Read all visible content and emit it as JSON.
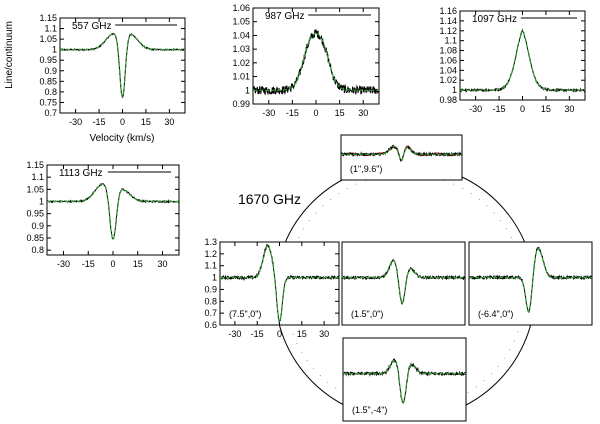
{
  "figure": {
    "ylabel": "Line/continuum",
    "xlabel": "Velocity (km/s)",
    "section_label": "1670 GHz"
  },
  "colors": {
    "observed": "#000000",
    "model": "#2ca02c",
    "alt_model": "#d62728"
  },
  "chart_data": [
    {
      "type": "line",
      "title": "557 GHz",
      "xlim": [
        -40,
        40
      ],
      "ylim": [
        0.7,
        1.15
      ],
      "xticks": [
        -30,
        -15,
        0,
        15,
        30
      ],
      "yticks": [
        0.7,
        0.75,
        0.8,
        0.85,
        0.9,
        0.95,
        1,
        1.05,
        1.1,
        1.15
      ],
      "xticklabels": [
        "-30",
        "-15",
        "0",
        "15",
        "30"
      ],
      "yticklabels": [
        "0.7",
        "0.75",
        "0.8",
        "0.85",
        "0.9",
        "0.95",
        "1",
        "1.05",
        "1.1",
        "1.15"
      ],
      "legend": "top-right",
      "noise": 0.003,
      "profile": {
        "base": 1.0,
        "comps": [
          [
            -6,
            5,
            0.07
          ],
          [
            5,
            5,
            0.07
          ],
          [
            0,
            1.8,
            -0.3
          ]
        ]
      }
    },
    {
      "type": "line",
      "title": "987 GHz",
      "xlim": [
        -40,
        40
      ],
      "ylim": [
        0.99,
        1.06
      ],
      "xticks": [
        -30,
        -15,
        0,
        15,
        30
      ],
      "yticks": [
        0.99,
        1,
        1.01,
        1.02,
        1.03,
        1.04,
        1.05,
        1.06
      ],
      "xticklabels": [
        "-30",
        "-15",
        "0",
        "15",
        "30"
      ],
      "yticklabels": [
        "0.99",
        "1",
        "1.01",
        "1.02",
        "1.03",
        "1.04",
        "1.05",
        "1.06"
      ],
      "legend": "top-right",
      "noise": 0.003,
      "flat": 8,
      "profile": {
        "base": 1.0,
        "comps": [
          [
            0,
            7,
            0.042
          ]
        ]
      }
    },
    {
      "type": "line",
      "title": "1097 GHz",
      "xlim": [
        -40,
        40
      ],
      "ylim": [
        0.98,
        1.16
      ],
      "xticks": [
        -30,
        -15,
        0,
        15,
        30
      ],
      "yticks": [
        0.98,
        1,
        1.02,
        1.04,
        1.06,
        1.08,
        1.1,
        1.12,
        1.14,
        1.16
      ],
      "xticklabels": [
        "-30",
        "-15",
        "0",
        "15",
        "30"
      ],
      "yticklabels": [
        "0.98",
        "1",
        "1.02",
        "1.04",
        "1.06",
        "1.08",
        "1.1",
        "1.12",
        "1.14",
        "1.16"
      ],
      "legend": "top-right",
      "noise": 0.002,
      "flat": 4,
      "profile": {
        "base": 1.0,
        "comps": [
          [
            0,
            7,
            0.122
          ]
        ]
      }
    },
    {
      "type": "line",
      "title": "1113 GHz",
      "xlim": [
        -40,
        40
      ],
      "ylim": [
        0.78,
        1.15
      ],
      "xticks": [
        -30,
        -15,
        0,
        15,
        30
      ],
      "yticks": [
        0.8,
        0.85,
        0.9,
        0.95,
        1,
        1.05,
        1.1,
        1.15
      ],
      "xticklabels": [
        "-30",
        "-15",
        "0",
        "15",
        "30"
      ],
      "yticklabels": [
        "0.8",
        "0.85",
        "0.9",
        "0.95",
        "1",
        "1.05",
        "1.1",
        "1.15"
      ],
      "legend": "top-right",
      "noise": 0.003,
      "profile": {
        "base": 1.0,
        "comps": [
          [
            -6,
            5,
            0.07
          ],
          [
            5,
            5,
            0.05
          ],
          [
            0,
            2,
            -0.22
          ]
        ]
      }
    },
    {
      "type": "line",
      "title": "",
      "offset_label": "(1\",9.6\")",
      "xlim": [
        -40,
        40
      ],
      "ylim": [
        0.6,
        1.3
      ],
      "xticks": [],
      "yticks": [],
      "noise": 0.02,
      "alt": true,
      "profile": {
        "base": 1.0,
        "comps": [
          [
            -5,
            3,
            0.12
          ],
          [
            3,
            3,
            0.12
          ],
          [
            0,
            1.5,
            -0.2
          ]
        ]
      }
    },
    {
      "type": "line",
      "title": "",
      "offset_label": "(7.5\",0\")",
      "xlim": [
        -40,
        40
      ],
      "ylim": [
        0.6,
        1.3
      ],
      "xticks": [
        -30,
        -15,
        0,
        15,
        30
      ],
      "yticks": [
        0.6,
        0.7,
        0.8,
        0.9,
        1,
        1.1,
        1.2,
        1.3
      ],
      "xticklabels": [
        "-30",
        "-15",
        "0",
        "15",
        "30"
      ],
      "yticklabels": [
        "0.6",
        "0.7",
        "0.8",
        "0.9",
        "1",
        "1.1",
        "1.2",
        "1.3"
      ],
      "noise": 0.012,
      "profile": {
        "base": 1.0,
        "comps": [
          [
            -8,
            3,
            0.27
          ],
          [
            0,
            1.8,
            -0.38
          ]
        ]
      }
    },
    {
      "type": "line",
      "title": "",
      "offset_label": "(1.5\",0\")",
      "xlim": [
        -40,
        40
      ],
      "ylim": [
        0.6,
        1.3
      ],
      "xticks": [],
      "yticks": [],
      "noise": 0.01,
      "profile": {
        "base": 1.0,
        "comps": [
          [
            -6,
            3,
            0.15
          ],
          [
            4,
            3,
            0.08
          ],
          [
            -1,
            2,
            -0.27
          ]
        ]
      }
    },
    {
      "type": "line",
      "title": "",
      "offset_label": "(-6.4\",0\")",
      "xlim": [
        -40,
        40
      ],
      "ylim": [
        0.6,
        1.3
      ],
      "xticks": [],
      "yticks": [],
      "noise": 0.012,
      "profile": {
        "base": 1.0,
        "comps": [
          [
            5,
            3,
            0.25
          ],
          [
            -1,
            2,
            -0.32
          ]
        ]
      }
    },
    {
      "type": "line",
      "title": "",
      "offset_label": "(1.5\",-4\")",
      "xlim": [
        -40,
        40
      ],
      "ylim": [
        0.6,
        1.3
      ],
      "xticks": [],
      "yticks": [],
      "noise": 0.012,
      "profile": {
        "base": 1.0,
        "comps": [
          [
            -6,
            3,
            0.12
          ],
          [
            4,
            3,
            0.08
          ],
          [
            -1,
            2,
            -0.3
          ]
        ]
      }
    }
  ]
}
